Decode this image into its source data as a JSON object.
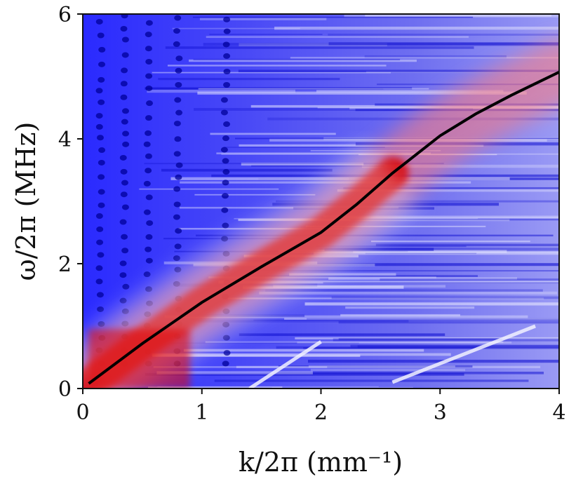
{
  "chart_data": {
    "type": "heatmap",
    "title": "",
    "xlabel": "k/2π (mm⁻¹)",
    "ylabel": "ω/2π (MHz)",
    "xlim": [
      0,
      4
    ],
    "ylim": [
      0,
      6
    ],
    "x_ticks": [
      0,
      1,
      2,
      3,
      4
    ],
    "y_ticks": [
      0,
      2,
      4,
      6
    ],
    "x_tick_labels": [
      "0",
      "1",
      "2",
      "3",
      "4"
    ],
    "y_tick_labels": [
      "0",
      "2",
      "4",
      "6"
    ],
    "colormap": "bwr",
    "colors": {
      "low": "#1a1aff",
      "mid": "#ffffff",
      "high": "#e00000",
      "curve": "#000000"
    },
    "description_regions": {
      "ridge": "red band following dispersion curve from (0,0) to about (2.5,3.2)",
      "second_branch": "faint light streaks near k≈1.6–2 and k≈3.2–3.8 at low frequency"
    },
    "series": [
      {
        "name": "dispersion curve",
        "x": [
          0.05,
          0.5,
          1.0,
          1.5,
          2.0,
          2.3,
          2.6,
          3.0,
          3.3,
          3.6,
          4.0
        ],
        "y": [
          0.08,
          0.72,
          1.38,
          1.95,
          2.5,
          2.95,
          3.45,
          4.05,
          4.4,
          4.7,
          5.07
        ]
      }
    ]
  }
}
